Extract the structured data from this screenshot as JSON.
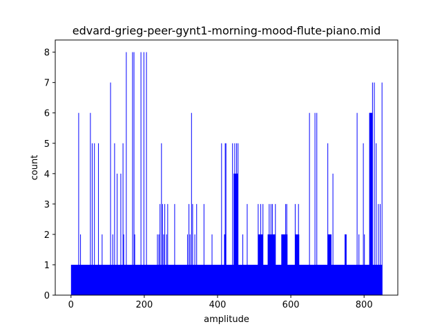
{
  "chart_data": {
    "type": "bar",
    "title": "edvard-grieg-peer-gynt1-morning-mood-flute-piano.mid",
    "xlabel": "amplitude",
    "ylabel": "count",
    "xlim": [
      -43,
      892
    ],
    "ylim": [
      0,
      8.4
    ],
    "xticks": [
      0,
      200,
      400,
      600,
      800
    ],
    "yticks": [
      0,
      1,
      2,
      3,
      4,
      5,
      6,
      7,
      8
    ],
    "bar_color": "#0000ff",
    "grid": false,
    "baseline": {
      "from": 0,
      "to": 849,
      "count": 1
    },
    "spikes": [
      {
        "x": 20,
        "count": 6
      },
      {
        "x": 25,
        "count": 2
      },
      {
        "x": 52,
        "count": 6
      },
      {
        "x": 57,
        "count": 5
      },
      {
        "x": 63,
        "count": 5
      },
      {
        "x": 74,
        "count": 5
      },
      {
        "x": 84,
        "count": 2
      },
      {
        "x": 107,
        "count": 7
      },
      {
        "x": 113,
        "count": 2
      },
      {
        "x": 118,
        "count": 5
      },
      {
        "x": 125,
        "count": 4
      },
      {
        "x": 135,
        "count": 4
      },
      {
        "x": 141,
        "count": 5
      },
      {
        "x": 143,
        "count": 2
      },
      {
        "x": 150,
        "count": 8
      },
      {
        "x": 167,
        "count": 8
      },
      {
        "x": 171,
        "count": 8
      },
      {
        "x": 173,
        "count": 2
      },
      {
        "x": 190,
        "count": 8
      },
      {
        "x": 198,
        "count": 8
      },
      {
        "x": 205,
        "count": 8
      },
      {
        "x": 235,
        "count": 2
      },
      {
        "x": 239,
        "count": 2
      },
      {
        "x": 242,
        "count": 3
      },
      {
        "x": 246,
        "count": 5
      },
      {
        "x": 249,
        "count": 3
      },
      {
        "x": 252,
        "count": 2
      },
      {
        "x": 255,
        "count": 3
      },
      {
        "x": 260,
        "count": 2
      },
      {
        "x": 263,
        "count": 3
      },
      {
        "x": 282,
        "count": 3
      },
      {
        "x": 317,
        "count": 2
      },
      {
        "x": 321,
        "count": 3
      },
      {
        "x": 324,
        "count": 2
      },
      {
        "x": 328,
        "count": 6
      },
      {
        "x": 331,
        "count": 3
      },
      {
        "x": 337,
        "count": 2
      },
      {
        "x": 342,
        "count": 3
      },
      {
        "x": 362,
        "count": 3
      },
      {
        "x": 384,
        "count": 2
      },
      {
        "x": 410,
        "count": 5
      },
      {
        "x": 418,
        "count": 2
      },
      {
        "x": 420,
        "count": 5
      },
      {
        "x": 422,
        "count": 5
      },
      {
        "x": 440,
        "count": 5
      },
      {
        "x": 444,
        "count": 4
      },
      {
        "x": 446,
        "count": 5
      },
      {
        "x": 448,
        "count": 4
      },
      {
        "x": 451,
        "count": 5
      },
      {
        "x": 453,
        "count": 4
      },
      {
        "x": 455,
        "count": 5
      },
      {
        "x": 468,
        "count": 2
      },
      {
        "x": 480,
        "count": 3
      },
      {
        "x": 510,
        "count": 3
      },
      {
        "x": 513,
        "count": 2
      },
      {
        "x": 517,
        "count": 3
      },
      {
        "x": 523,
        "count": 3
      },
      {
        "x": 537,
        "count": 2
      },
      {
        "x": 540,
        "count": 3
      },
      {
        "x": 545,
        "count": 3
      },
      {
        "x": 549,
        "count": 3
      },
      {
        "x": 553,
        "count": 2
      },
      {
        "x": 557,
        "count": 3
      },
      {
        "x": 575,
        "count": 2
      },
      {
        "x": 580,
        "count": 2
      },
      {
        "x": 585,
        "count": 3
      },
      {
        "x": 588,
        "count": 3
      },
      {
        "x": 611,
        "count": 3
      },
      {
        "x": 615,
        "count": 2
      },
      {
        "x": 620,
        "count": 3
      },
      {
        "x": 650,
        "count": 6
      },
      {
        "x": 665,
        "count": 6
      },
      {
        "x": 670,
        "count": 6
      },
      {
        "x": 700,
        "count": 5
      },
      {
        "x": 704,
        "count": 2
      },
      {
        "x": 709,
        "count": 2
      },
      {
        "x": 714,
        "count": 4
      },
      {
        "x": 747,
        "count": 2
      },
      {
        "x": 750,
        "count": 2
      },
      {
        "x": 780,
        "count": 6
      },
      {
        "x": 785,
        "count": 2
      },
      {
        "x": 797,
        "count": 5
      },
      {
        "x": 800,
        "count": 2
      },
      {
        "x": 815,
        "count": 6
      },
      {
        "x": 818,
        "count": 6
      },
      {
        "x": 822,
        "count": 7
      },
      {
        "x": 827,
        "count": 7
      },
      {
        "x": 832,
        "count": 5
      },
      {
        "x": 838,
        "count": 3
      },
      {
        "x": 843,
        "count": 3
      },
      {
        "x": 848,
        "count": 7
      }
    ],
    "band_ranges": [
      {
        "from": 418,
        "to": 422,
        "count": 2
      },
      {
        "from": 444,
        "to": 455,
        "count": 4
      },
      {
        "from": 510,
        "to": 523,
        "count": 2
      },
      {
        "from": 537,
        "to": 557,
        "count": 2
      },
      {
        "from": 574,
        "to": 590,
        "count": 2
      },
      {
        "from": 611,
        "to": 622,
        "count": 2
      },
      {
        "from": 700,
        "to": 709,
        "count": 2
      },
      {
        "from": 747,
        "to": 751,
        "count": 2
      },
      {
        "from": 814,
        "to": 822,
        "count": 6
      }
    ]
  }
}
